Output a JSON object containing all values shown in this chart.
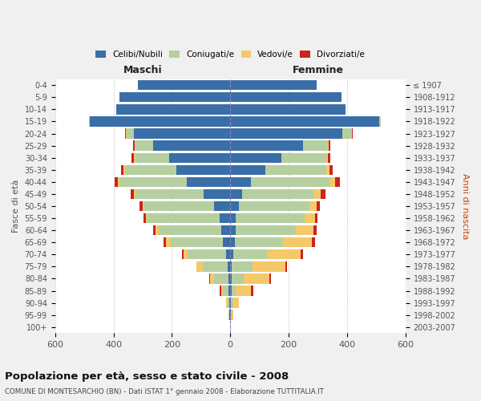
{
  "age_groups": [
    "0-4",
    "5-9",
    "10-14",
    "15-19",
    "20-24",
    "25-29",
    "30-34",
    "35-39",
    "40-44",
    "45-49",
    "50-54",
    "55-59",
    "60-64",
    "65-69",
    "70-74",
    "75-79",
    "80-84",
    "85-89",
    "90-94",
    "95-99",
    "100+"
  ],
  "birth_years": [
    "2003-2007",
    "1998-2002",
    "1993-1997",
    "1988-1992",
    "1983-1987",
    "1978-1982",
    "1973-1977",
    "1968-1972",
    "1963-1967",
    "1958-1962",
    "1953-1957",
    "1948-1952",
    "1943-1947",
    "1938-1942",
    "1933-1937",
    "1928-1932",
    "1923-1927",
    "1918-1922",
    "1913-1917",
    "1908-1912",
    "≤ 1907"
  ],
  "male": {
    "celibi": [
      315,
      380,
      390,
      480,
      330,
      265,
      210,
      185,
      150,
      90,
      55,
      35,
      30,
      25,
      15,
      10,
      5,
      5,
      2,
      2,
      0
    ],
    "coniugati": [
      0,
      0,
      0,
      5,
      25,
      60,
      115,
      175,
      230,
      235,
      240,
      250,
      215,
      180,
      130,
      85,
      50,
      20,
      8,
      3,
      1
    ],
    "vedovi": [
      0,
      0,
      0,
      0,
      2,
      3,
      5,
      5,
      5,
      5,
      5,
      5,
      10,
      15,
      15,
      20,
      15,
      5,
      3,
      2,
      0
    ],
    "divorziati": [
      0,
      0,
      0,
      0,
      2,
      5,
      8,
      10,
      10,
      10,
      10,
      8,
      8,
      8,
      5,
      2,
      2,
      5,
      0,
      0,
      0
    ]
  },
  "female": {
    "nubili": [
      295,
      380,
      395,
      510,
      385,
      250,
      175,
      120,
      70,
      40,
      30,
      20,
      20,
      15,
      10,
      5,
      5,
      5,
      2,
      2,
      0
    ],
    "coniugate": [
      0,
      0,
      0,
      5,
      30,
      85,
      155,
      210,
      270,
      245,
      240,
      235,
      205,
      165,
      115,
      70,
      40,
      15,
      8,
      3,
      1
    ],
    "vedove": [
      0,
      0,
      0,
      0,
      2,
      3,
      5,
      10,
      20,
      25,
      25,
      35,
      60,
      100,
      115,
      115,
      90,
      50,
      20,
      5,
      0
    ],
    "divorziate": [
      0,
      0,
      0,
      0,
      2,
      5,
      8,
      12,
      15,
      15,
      12,
      10,
      10,
      10,
      8,
      5,
      5,
      8,
      0,
      0,
      0
    ]
  },
  "colors": {
    "celibi": "#3a6ea8",
    "coniugati": "#b5cfa0",
    "vedovi": "#f5c96a",
    "divorziati": "#cc2222"
  },
  "title": "Popolazione per età, sesso e stato civile - 2008",
  "subtitle": "COMUNE DI MONTESARCHIO (BN) - Dati ISTAT 1° gennaio 2008 - Elaborazione TUTTITALIA.IT",
  "xlabel_left": "Maschi",
  "xlabel_right": "Femmine",
  "ylabel_left": "Fasce di età",
  "ylabel_right": "Anni di nascita",
  "xlim": 600,
  "bg_color": "#f0f0f0",
  "plot_bg_color": "#ffffff",
  "grid_color": "#cccccc"
}
